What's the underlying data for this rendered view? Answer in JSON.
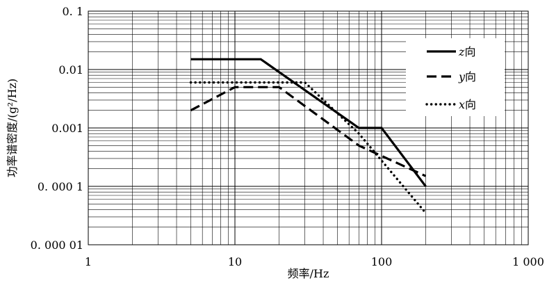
{
  "chart_data": {
    "type": "line",
    "title": "",
    "xlabel": "频率/Hz",
    "ylabel": "功率谱密度/(g²/Hz)",
    "xscale": "log",
    "yscale": "log",
    "xlim": [
      1,
      1000
    ],
    "ylim": [
      1e-05,
      0.1
    ],
    "x_ticks": [
      {
        "value": 1,
        "label": "1"
      },
      {
        "value": 10,
        "label": "10"
      },
      {
        "value": 100,
        "label": "100"
      },
      {
        "value": 1000,
        "label": "1 000"
      }
    ],
    "y_ticks": [
      {
        "value": 0.1,
        "label": "0. 1"
      },
      {
        "value": 0.01,
        "label": "0.01"
      },
      {
        "value": 0.001,
        "label": "0.001"
      },
      {
        "value": 0.0001,
        "label": "0. 000 1"
      },
      {
        "value": 1e-05,
        "label": "0. 000 01"
      }
    ],
    "grid": true,
    "legend_position": "upper-right",
    "series": [
      {
        "name": "z向",
        "style": "solid",
        "x": [
          5,
          15,
          70,
          100,
          200
        ],
        "y": [
          0.015,
          0.015,
          0.001,
          0.001,
          0.0001
        ]
      },
      {
        "name": "y向",
        "style": "dashed",
        "x": [
          5,
          10,
          20,
          70,
          200
        ],
        "y": [
          0.002,
          0.005,
          0.005,
          0.0005,
          0.00015
        ]
      },
      {
        "name": "x向",
        "style": "dotted",
        "x": [
          5,
          30,
          70,
          200
        ],
        "y": [
          0.006,
          0.006,
          0.0008,
          3.5e-05
        ]
      }
    ]
  }
}
